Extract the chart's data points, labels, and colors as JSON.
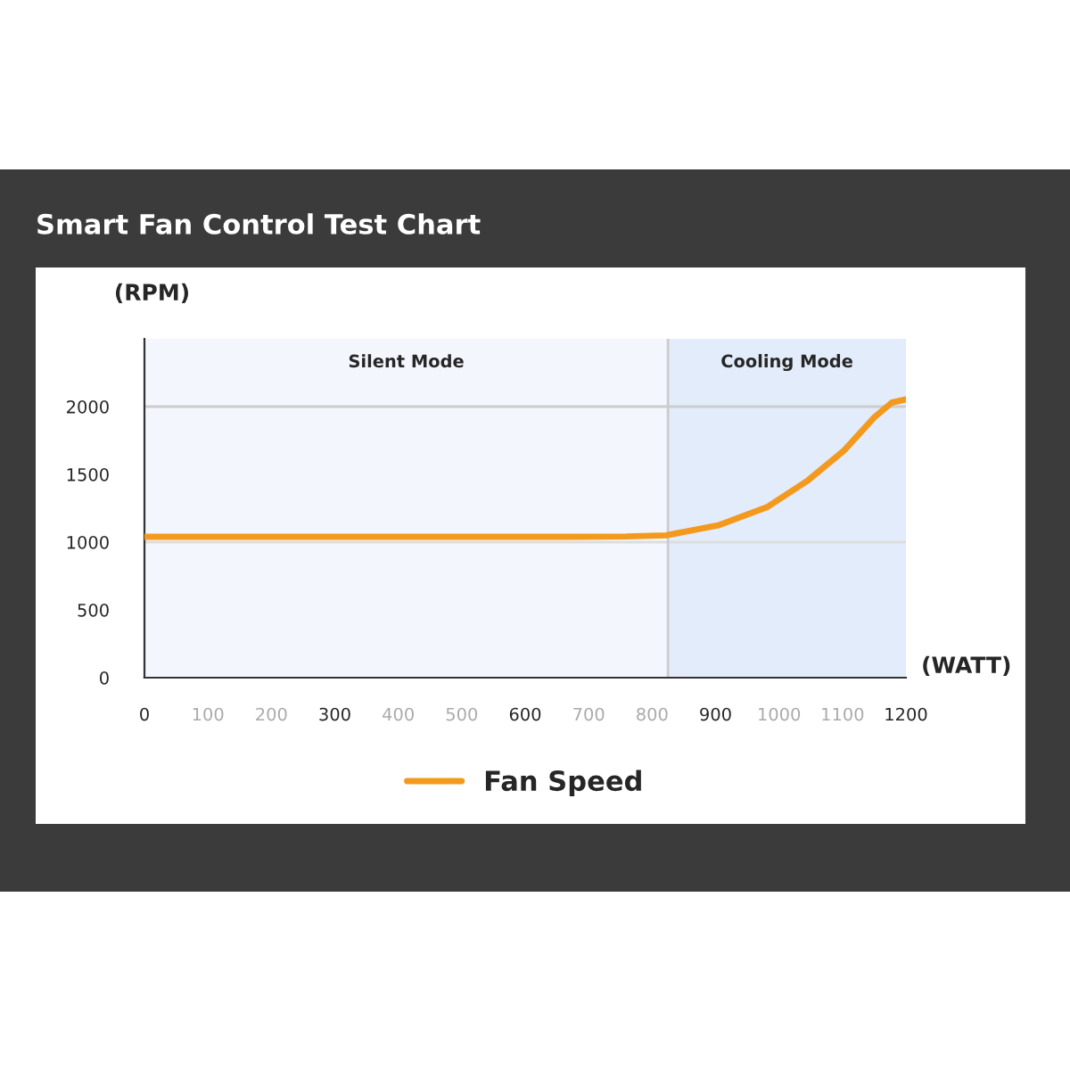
{
  "chart_data": {
    "type": "line",
    "title": "Smart Fan Control Test Chart",
    "xlabel": "(WATT)",
    "ylabel": "(RPM)",
    "x": [
      0,
      200,
      400,
      600,
      672,
      760,
      822,
      906,
      981,
      1046,
      1103,
      1150,
      1178,
      1200
    ],
    "series": [
      {
        "name": "Fan Speed",
        "color": "#f39a1e",
        "values": [
          1040,
          1040,
          1040,
          1040,
          1040,
          1042,
          1050,
          1126,
          1258,
          1457,
          1678,
          1920,
          2030,
          2053
        ]
      }
    ],
    "xlim": [
      0,
      1200
    ],
    "ylim": [
      0,
      2500
    ],
    "xticks": [
      0,
      100,
      200,
      300,
      400,
      500,
      600,
      700,
      800,
      900,
      1000,
      1100,
      1200
    ],
    "yticks": [
      0,
      500,
      1000,
      1500,
      2000
    ],
    "bands": [
      {
        "axis": "x",
        "from": 0,
        "to": 825,
        "label": "Silent Mode",
        "color": "#f3f7fd"
      },
      {
        "axis": "x",
        "from": 825,
        "to": 1200,
        "label": "Cooling Mode",
        "color": "#e3ecfa"
      }
    ],
    "ref_lines": [
      {
        "axis": "y",
        "value": 1000,
        "color": "#dddddd"
      },
      {
        "axis": "y",
        "value": 2000,
        "color": "#cccccc"
      },
      {
        "axis": "x",
        "value": 825,
        "color": "#cccccc"
      }
    ],
    "legend": "bottom",
    "marker": "none",
    "line_style": "solid"
  }
}
